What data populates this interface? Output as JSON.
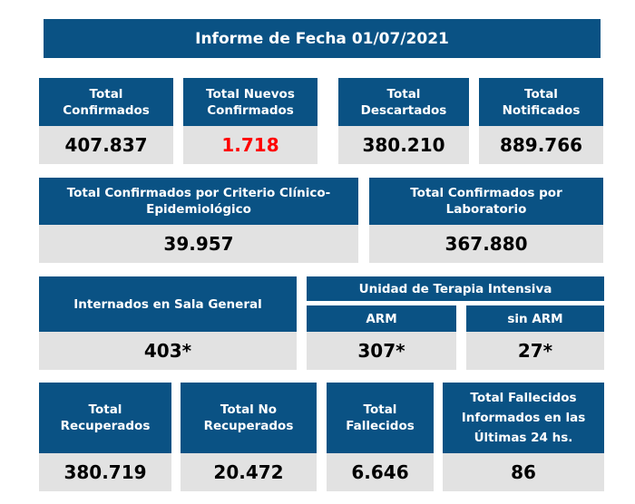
{
  "title": "Informe de Fecha 01/07/2021",
  "row1": [
    {
      "label": "Total Confirmados",
      "value": "407.837"
    },
    {
      "label": "Total Nuevos Confirmados",
      "value": "1.718"
    },
    {
      "label": "Total Descartados",
      "value": "380.210"
    },
    {
      "label": "Total Notificados",
      "value": "889.766"
    }
  ],
  "row2": [
    {
      "label": "Total Confirmados por Criterio Clínico-Epidemiológico",
      "value": "39.957"
    },
    {
      "label": "Total Confirmados por Laboratorio",
      "value": "367.880"
    }
  ],
  "row3": {
    "internados": {
      "label": "Internados en Sala General",
      "value": "403*"
    },
    "uti_label": "Unidad de Terapia Intensiva",
    "arm": {
      "label": "ARM",
      "value": "307*"
    },
    "sin_arm": {
      "label": "sin ARM",
      "value": "27*"
    }
  },
  "row4": [
    {
      "label": "Total Recuperados",
      "value": "380.719"
    },
    {
      "label": "Total No Recuperados",
      "value": "20.472"
    },
    {
      "label": "Total Fallecidos",
      "value": "6.646"
    },
    {
      "label": "Total Fallecidos Informados en las Últimas 24 hs.",
      "value": "86"
    }
  ],
  "colors": {
    "header": "#0a5284",
    "value_bg": "#e2e2e2",
    "highlight": "#ff0000"
  }
}
